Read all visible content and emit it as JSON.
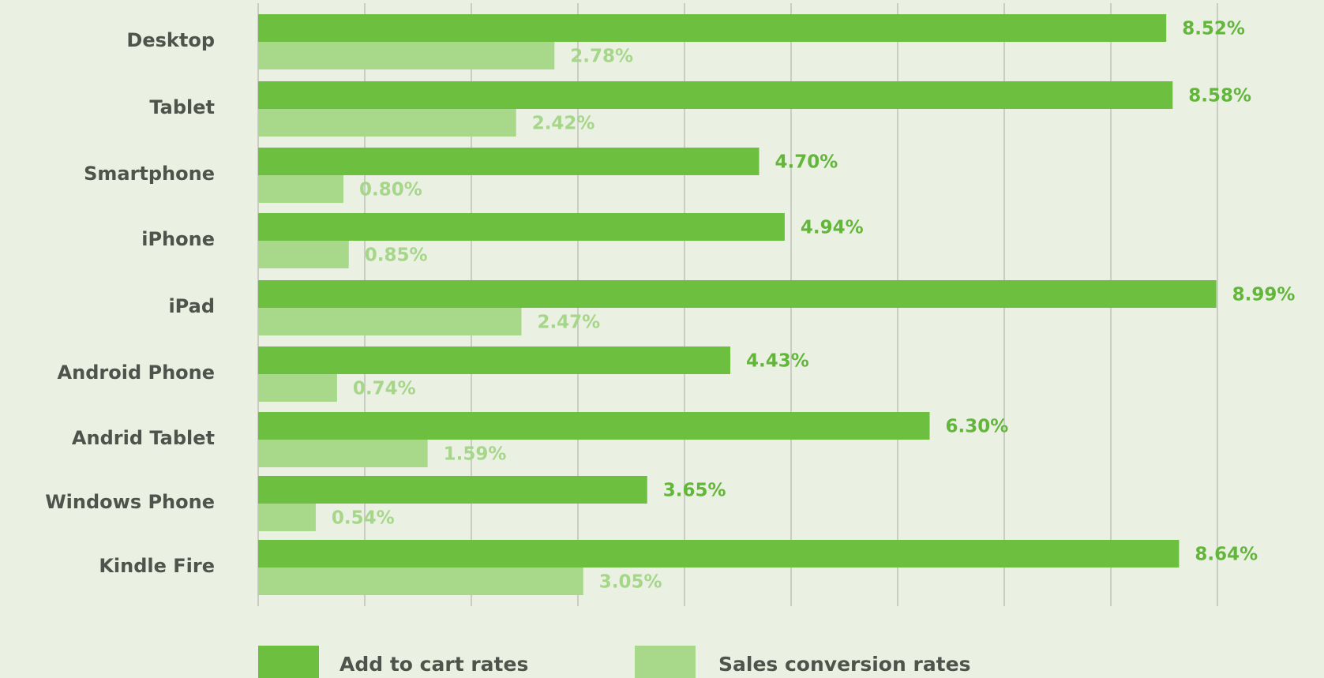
{
  "chart_data": {
    "type": "bar",
    "orientation": "horizontal",
    "categories": [
      "Desktop",
      "Tablet",
      "Smartphone",
      "iPhone",
      "iPad",
      "Android Phone",
      "Andrid Tablet",
      "Windows Phone",
      "Kindle Fire"
    ],
    "series": [
      {
        "name": "Add to cart rates",
        "color": "#6cbf3f",
        "label_color": "#62b63a",
        "values": [
          8.52,
          8.58,
          4.7,
          4.94,
          8.99,
          4.43,
          6.3,
          3.65,
          8.64
        ],
        "labels": [
          "8.52%",
          "8.58%",
          "4.70%",
          "4.94%",
          "8.99%",
          "4.43%",
          "6.30%",
          "3.65%",
          "8.64%"
        ]
      },
      {
        "name": "Sales conversion rates",
        "color": "#a8d98a",
        "label_color": "#a6d68a",
        "values": [
          2.78,
          2.42,
          0.8,
          0.85,
          2.47,
          0.74,
          1.59,
          0.54,
          3.05
        ],
        "labels": [
          "2.78%",
          "2.42%",
          "0.80%",
          "0.85%",
          "2.47%",
          "0.74%",
          "1.59%",
          "0.54%",
          "3.05%"
        ]
      }
    ],
    "xlim": [
      0,
      9
    ],
    "grid": true,
    "legend_position": "bottom"
  }
}
